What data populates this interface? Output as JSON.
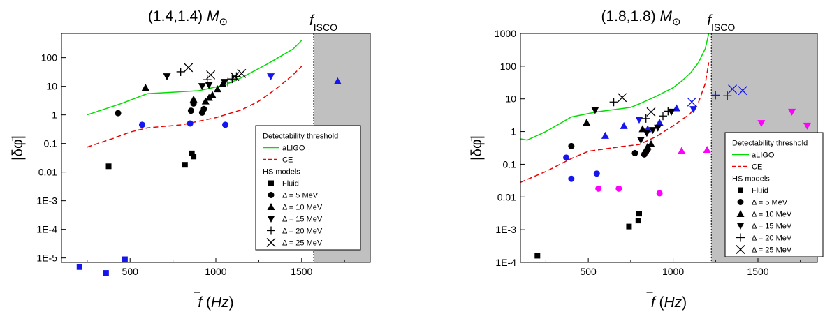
{
  "chart_data": [
    {
      "type": "scatter",
      "title_main": "(1.4,1.4) ",
      "title_mass": "M",
      "title_sun": "⊙",
      "isco_f": "f",
      "isco_sub": "ISCO",
      "xlabel_f": "f",
      "xlabel_unit": "Hz",
      "ylabel": "|δφ̄|",
      "yscale": "log",
      "xlim": [
        100,
        1900
      ],
      "ylim": [
        7e-06,
        700
      ],
      "xticks": [
        500,
        1000,
        1500
      ],
      "xtick_labels": [
        "500",
        "1000",
        "1500"
      ],
      "yticks": [
        1e-05,
        0.0001,
        0.001,
        0.01,
        0.1,
        1,
        10,
        100
      ],
      "ytick_labels": [
        "1E-5",
        "1E-4",
        "1E-3",
        "0.01",
        "0.1",
        "1",
        "10",
        "100"
      ],
      "isco_x": 1570,
      "legend": {
        "title": "Detectability threshold",
        "aligo": "aLIGO",
        "ce": "CE",
        "hs_title": "HS models",
        "fluid": "Fluid",
        "d5": "Δ = 5 MeV",
        "d10": "Δ = 10 MeV",
        "d15": "Δ = 15 MeV",
        "d20": "Δ = 20 MeV",
        "d25": "Δ = 25 MeV"
      },
      "aligo": [
        [
          250,
          1.0
        ],
        [
          450,
          2.5
        ],
        [
          600,
          5.5
        ],
        [
          900,
          7
        ],
        [
          1050,
          11
        ],
        [
          1150,
          20
        ],
        [
          1300,
          60
        ],
        [
          1450,
          200
        ],
        [
          1500,
          400
        ]
      ],
      "ce": [
        [
          250,
          0.075
        ],
        [
          400,
          0.15
        ],
        [
          500,
          0.25
        ],
        [
          600,
          0.35
        ],
        [
          800,
          0.45
        ],
        [
          1000,
          0.8
        ],
        [
          1150,
          1.5
        ],
        [
          1250,
          3
        ],
        [
          1350,
          8
        ],
        [
          1450,
          25
        ],
        [
          1500,
          50
        ]
      ],
      "series": [
        {
          "marker": "square",
          "color": "#000000",
          "points": [
            [
              375,
              0.016
            ],
            [
              820,
              0.018
            ],
            [
              860,
              0.045
            ],
            [
              870,
              0.035
            ]
          ]
        },
        {
          "marker": "square",
          "color": "#1515ee",
          "points": [
            [
              205,
              4.8e-06
            ],
            [
              360,
              3e-06
            ],
            [
              470,
              9e-06
            ]
          ]
        },
        {
          "marker": "circle",
          "color": "#000000",
          "points": [
            [
              430,
              1.15
            ],
            [
              855,
              1.4
            ],
            [
              870,
              2.5
            ],
            [
              920,
              1.2
            ],
            [
              930,
              1.6
            ]
          ]
        },
        {
          "marker": "circle",
          "color": "#1515ee",
          "points": [
            [
              570,
              0.45
            ],
            [
              850,
              0.5
            ],
            [
              1055,
              0.45
            ]
          ]
        },
        {
          "marker": "triangle-up",
          "color": "#000000",
          "points": [
            [
              590,
              9
            ],
            [
              870,
              3.5
            ],
            [
              940,
              3
            ],
            [
              960,
              4
            ],
            [
              980,
              5
            ],
            [
              1010,
              8
            ],
            [
              1040,
              12
            ]
          ]
        },
        {
          "marker": "triangle-up",
          "color": "#1515ee",
          "points": [
            [
              1710,
              15
            ]
          ]
        },
        {
          "marker": "triangle-down",
          "color": "#000000",
          "points": [
            [
              715,
              22
            ],
            [
              920,
              10
            ],
            [
              960,
              11
            ],
            [
              1050,
              14
            ]
          ]
        },
        {
          "marker": "triangle-down",
          "color": "#1515ee",
          "points": [
            [
              1320,
              22
            ]
          ]
        },
        {
          "marker": "plus",
          "color": "#000000",
          "points": [
            [
              795,
              32
            ],
            [
              950,
              17
            ],
            [
              1070,
              14
            ],
            [
              1095,
              18
            ],
            [
              1120,
              22
            ]
          ]
        },
        {
          "marker": "cross",
          "color": "#000000",
          "points": [
            [
              840,
              45
            ],
            [
              970,
              25
            ],
            [
              1110,
              22
            ],
            [
              1150,
              28
            ]
          ]
        }
      ]
    },
    {
      "type": "scatter",
      "title_main": "(1.8,1.8) ",
      "title_mass": "M",
      "title_sun": "⊙",
      "isco_f": "f",
      "isco_sub": "ISCO",
      "xlabel_f": "f",
      "xlabel_unit": "Hz",
      "ylabel": "|δφ̄|",
      "yscale": "log",
      "xlim": [
        100,
        1850
      ],
      "ylim": [
        0.0001,
        1000
      ],
      "xticks": [
        500,
        1000,
        1500
      ],
      "xtick_labels": [
        "500",
        "1000",
        "1500"
      ],
      "yticks": [
        0.0001,
        0.001,
        0.01,
        0.1,
        1,
        10,
        100,
        1000
      ],
      "ytick_labels": [
        "1E-4",
        "1E-3",
        "0.01",
        "0.1",
        "1",
        "10",
        "100",
        "1000"
      ],
      "isco_x": 1225,
      "legend": {
        "title": "Detectability threshold",
        "aligo": "aLIGO",
        "ce": "CE",
        "hs_title": "HS models",
        "fluid": "Fluid",
        "d5": "Δ = 5 MeV",
        "d10": "Δ = 10 MeV",
        "d15": "Δ = 15 MeV",
        "d20": "Δ = 20 MeV",
        "d25": "Δ = 25 MeV"
      },
      "aligo": [
        [
          100,
          0.6
        ],
        [
          140,
          0.55
        ],
        [
          250,
          1.0
        ],
        [
          400,
          2.8
        ],
        [
          550,
          4.0
        ],
        [
          750,
          5.5
        ],
        [
          800,
          7
        ],
        [
          900,
          12
        ],
        [
          1000,
          22
        ],
        [
          1050,
          35
        ],
        [
          1100,
          60
        ],
        [
          1150,
          130
        ],
        [
          1190,
          350
        ],
        [
          1210,
          1000
        ]
      ],
      "ce": [
        [
          100,
          0.028
        ],
        [
          250,
          0.06
        ],
        [
          400,
          0.15
        ],
        [
          500,
          0.25
        ],
        [
          700,
          0.35
        ],
        [
          800,
          0.4
        ],
        [
          900,
          0.7
        ],
        [
          1000,
          1.5
        ],
        [
          1100,
          3.5
        ],
        [
          1150,
          8
        ],
        [
          1190,
          30
        ],
        [
          1210,
          130
        ]
      ],
      "series": [
        {
          "marker": "square",
          "color": "#000000",
          "points": [
            [
              200,
              0.00016
            ],
            [
              740,
              0.00125
            ],
            [
              795,
              0.0019
            ],
            [
              800,
              0.0031
            ]
          ]
        },
        {
          "marker": "circle",
          "color": "#000000",
          "points": [
            [
              400,
              0.36
            ],
            [
              775,
              0.22
            ],
            [
              830,
              0.2
            ],
            [
              840,
              0.24
            ],
            [
              850,
              0.28
            ]
          ]
        },
        {
          "marker": "circle",
          "color": "#1515ee",
          "points": [
            [
              370,
              0.16
            ],
            [
              400,
              0.036
            ],
            [
              550,
              0.052
            ]
          ]
        },
        {
          "marker": "circle",
          "color": "#ff00ff",
          "points": [
            [
              560,
              0.018
            ],
            [
              680,
              0.018
            ],
            [
              920,
              0.013
            ]
          ]
        },
        {
          "marker": "triangle-up",
          "color": "#000000",
          "points": [
            [
              490,
              1.9
            ],
            [
              820,
              1.2
            ],
            [
              850,
              0.35
            ],
            [
              870,
              0.42
            ]
          ]
        },
        {
          "marker": "triangle-up",
          "color": "#1515ee",
          "points": [
            [
              600,
              0.75
            ],
            [
              710,
              1.5
            ],
            [
              850,
              1.2
            ],
            [
              920,
              1.9
            ],
            [
              1020,
              5.2
            ]
          ]
        },
        {
          "marker": "triangle-up",
          "color": "#ff00ff",
          "points": [
            [
              1050,
              0.26
            ],
            [
              1200,
              0.28
            ]
          ]
        },
        {
          "marker": "triangle-down",
          "color": "#000000",
          "points": [
            [
              540,
              4.5
            ],
            [
              810,
              0.55
            ],
            [
              845,
              0.9
            ],
            [
              880,
              1.1
            ],
            [
              910,
              1.3
            ],
            [
              990,
              4
            ]
          ]
        },
        {
          "marker": "triangle-down",
          "color": "#1515ee",
          "points": [
            [
              800,
              2.3
            ],
            [
              1120,
              4.8
            ]
          ]
        },
        {
          "marker": "triangle-down",
          "color": "#ff00ff",
          "points": [
            [
              1520,
              1.8
            ],
            [
              1700,
              4
            ],
            [
              1790,
              1.5
            ]
          ]
        },
        {
          "marker": "plus",
          "color": "#000000",
          "points": [
            [
              650,
              8
            ],
            [
              840,
              2.5
            ],
            [
              940,
              3
            ],
            [
              970,
              4.2
            ]
          ]
        },
        {
          "marker": "plus",
          "color": "#1515ee",
          "points": [
            [
              1250,
              13
            ],
            [
              1320,
              12.5
            ]
          ]
        },
        {
          "marker": "cross",
          "color": "#000000",
          "points": [
            [
              700,
              11
            ],
            [
              870,
              4
            ]
          ]
        },
        {
          "marker": "cross",
          "color": "#1515ee",
          "points": [
            [
              1110,
              8
            ],
            [
              1350,
              20
            ],
            [
              1410,
              18
            ]
          ]
        }
      ]
    }
  ]
}
